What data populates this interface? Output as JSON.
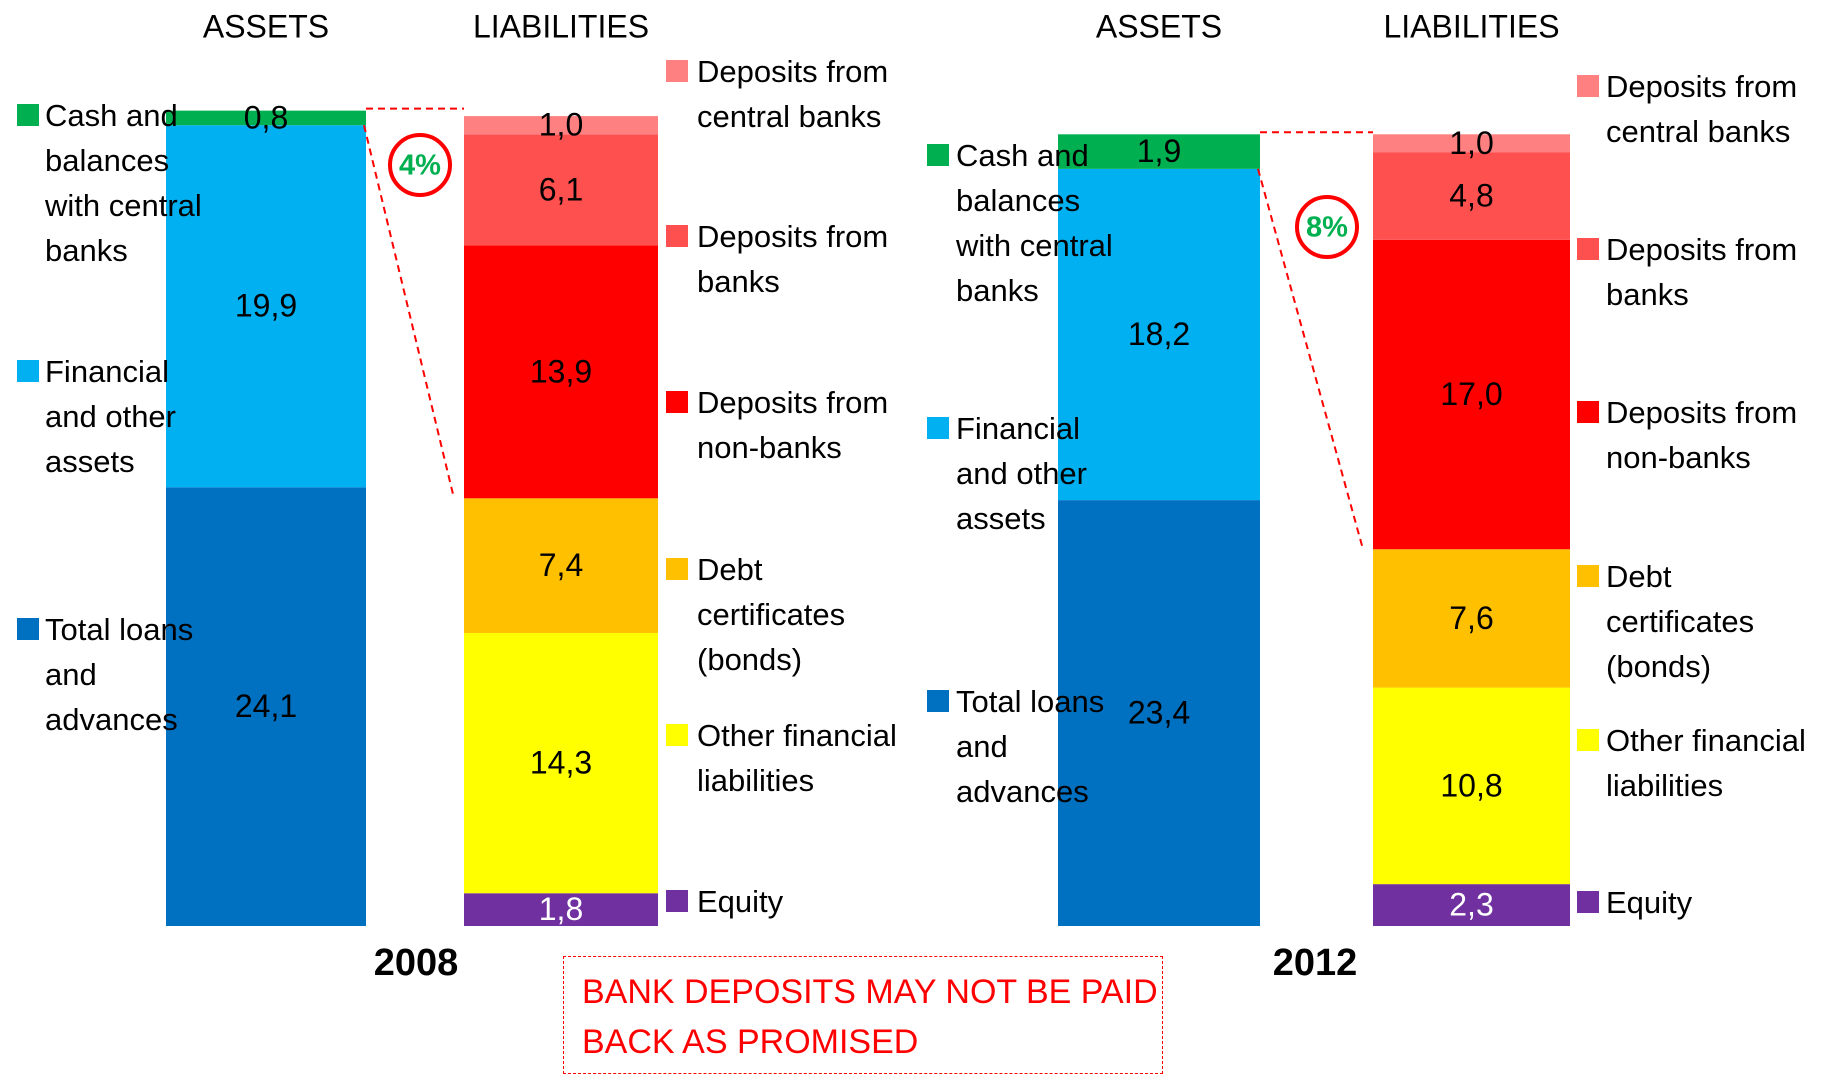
{
  "chart_data": [
    {
      "type": "stacked_bar",
      "title": "2008",
      "categories": [
        "ASSETS",
        "LIABILITIES"
      ],
      "annotation": "4%",
      "series": [
        {
          "name": "Total loans and advances",
          "color": "#0070c0",
          "values": [
            24.1,
            null
          ],
          "value_labels": [
            "24,1",
            null
          ]
        },
        {
          "name": "Financial and other assets",
          "color": "#00b0f0",
          "values": [
            19.9,
            null
          ],
          "value_labels": [
            "19,9",
            null
          ]
        },
        {
          "name": "Cash and balances with central banks",
          "color": "#00b050",
          "values": [
            0.8,
            null
          ],
          "value_labels": [
            "0,8",
            null
          ]
        },
        {
          "name": "Equity",
          "color": "#7030a0",
          "label_color": "#ffffff",
          "values": [
            null,
            1.8
          ],
          "value_labels": [
            null,
            "1,8"
          ]
        },
        {
          "name": "Other financial liabilities",
          "color": "#ffff00",
          "values": [
            null,
            14.3
          ],
          "value_labels": [
            null,
            "14,3"
          ]
        },
        {
          "name": "Debt certificates (bonds)",
          "color": "#ffc000",
          "values": [
            null,
            7.4
          ],
          "value_labels": [
            null,
            "7,4"
          ]
        },
        {
          "name": "Deposits from non-banks",
          "color": "#ff0000",
          "values": [
            null,
            13.9
          ],
          "value_labels": [
            null,
            "13,9"
          ]
        },
        {
          "name": "Deposits from banks",
          "color": "#ff5050",
          "values": [
            null,
            6.1
          ],
          "value_labels": [
            null,
            "6,1"
          ]
        },
        {
          "name": "Deposits from central banks",
          "color": "#ff8080",
          "values": [
            null,
            1.0
          ],
          "value_labels": [
            null,
            "1,0"
          ]
        }
      ]
    },
    {
      "type": "stacked_bar",
      "title": "2012",
      "categories": [
        "ASSETS",
        "LIABILITIES"
      ],
      "annotation": "8%",
      "series": [
        {
          "name": "Total loans and advances",
          "color": "#0070c0",
          "values": [
            23.4,
            null
          ],
          "value_labels": [
            "23,4",
            null
          ]
        },
        {
          "name": "Financial and other assets",
          "color": "#00b0f0",
          "values": [
            18.2,
            null
          ],
          "value_labels": [
            "18,2",
            null
          ]
        },
        {
          "name": "Cash and balances with central banks",
          "color": "#00b050",
          "values": [
            1.9,
            null
          ],
          "value_labels": [
            "1,9",
            null
          ]
        },
        {
          "name": "Equity",
          "color": "#7030a0",
          "label_color": "#ffffff",
          "values": [
            null,
            2.3
          ],
          "value_labels": [
            null,
            "2,3"
          ]
        },
        {
          "name": "Other financial liabilities",
          "color": "#ffff00",
          "values": [
            null,
            10.8
          ],
          "value_labels": [
            null,
            "10,8"
          ]
        },
        {
          "name": "Debt certificates (bonds)",
          "color": "#ffc000",
          "values": [
            null,
            7.6
          ],
          "value_labels": [
            null,
            "7,6"
          ]
        },
        {
          "name": "Deposits from non-banks",
          "color": "#ff0000",
          "values": [
            null,
            17.0
          ],
          "value_labels": [
            null,
            "17,0"
          ]
        },
        {
          "name": "Deposits from banks",
          "color": "#ff5050",
          "values": [
            null,
            4.8
          ],
          "value_labels": [
            null,
            "4,8"
          ]
        },
        {
          "name": "Deposits from central banks",
          "color": "#ff8080",
          "values": [
            null,
            1.0
          ],
          "value_labels": [
            null,
            "1,0"
          ]
        }
      ]
    }
  ],
  "callout": "BANK DEPOSITS MAY NOT BE PAID BACK AS PROMISED"
}
